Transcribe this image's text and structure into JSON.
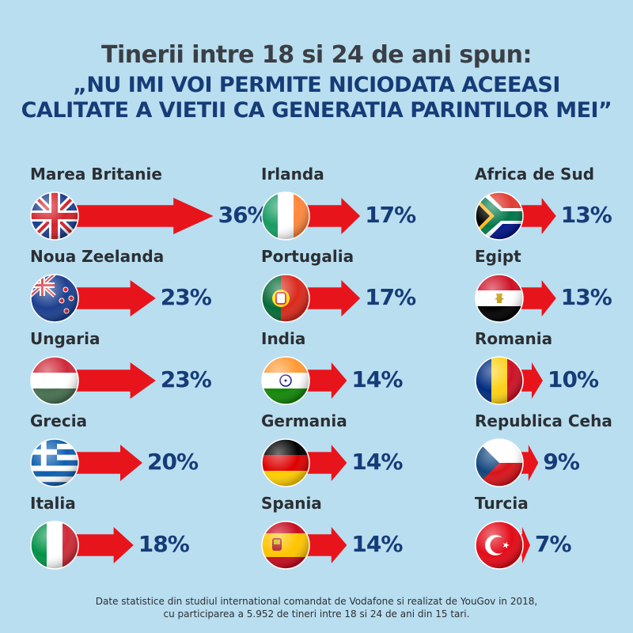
{
  "header": {
    "title": "Tinerii intre 18 si 24 de ani spun:",
    "subtitle_line1": "„NU IMI VOI PERMITE NICIODATA ACEEASI",
    "subtitle_line2": "CALITATE A VIETII CA GENERATIA PARINTILOR MEI”"
  },
  "chart_data": {
    "type": "bar",
    "categories": [
      "Marea Britanie",
      "Noua Zeelanda",
      "Ungaria",
      "Grecia",
      "Italia",
      "Irlanda",
      "Portugalia",
      "India",
      "Germania",
      "Spania",
      "Africa de Sud",
      "Egipt",
      "Romania",
      "Republica Ceha",
      "Turcia"
    ],
    "values": [
      36,
      23,
      23,
      20,
      18,
      17,
      17,
      14,
      14,
      14,
      13,
      13,
      10,
      9,
      7
    ],
    "value_labels": [
      "36%",
      "23%",
      "23%",
      "20%",
      "18%",
      "17%",
      "17%",
      "14%",
      "14%",
      "14%",
      "13%",
      "13%",
      "10%",
      "9%",
      "7%"
    ],
    "flags": [
      "uk-flag-icon",
      "new-zealand-flag-icon",
      "hungary-flag-icon",
      "greece-flag-icon",
      "italy-flag-icon",
      "ireland-flag-icon",
      "portugal-flag-icon",
      "india-flag-icon",
      "germany-flag-icon",
      "spain-flag-icon",
      "south-africa-flag-icon",
      "egypt-flag-icon",
      "romania-flag-icon",
      "czech-flag-icon",
      "turkey-flag-icon"
    ],
    "unit": "%"
  },
  "footer": {
    "line1": "Date statistice din studiul international comandat de Vodafone si realizat de YouGov in 2018,",
    "line2": "cu participarea a 5.952 de tineri intre 18 si 24 de ani din 15 tari."
  },
  "colors": {
    "background": "#b9def0",
    "arrow": "#e8141b",
    "accent_text": "#163c78"
  }
}
